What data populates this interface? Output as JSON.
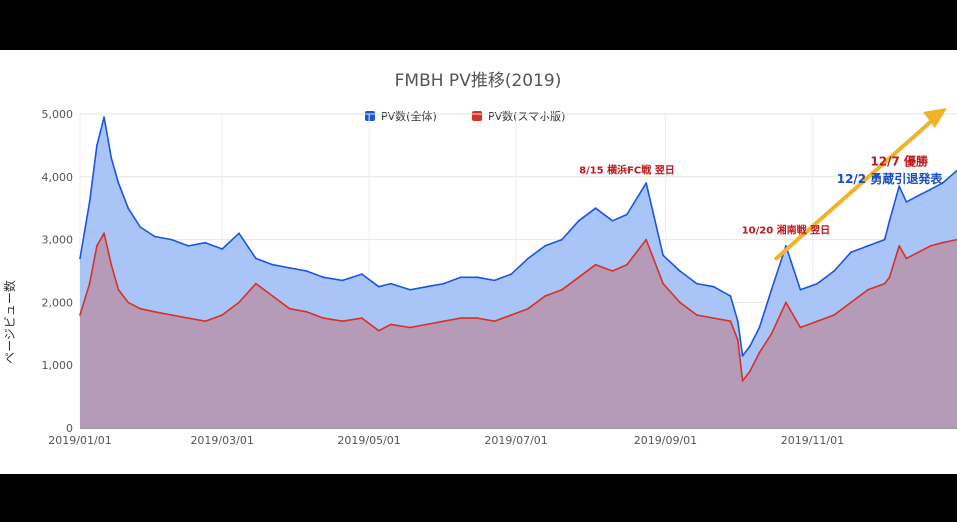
{
  "colors": {
    "total": "#1a55e3",
    "total_fill": "#a9c5f7",
    "mobile": "#d93025",
    "mobile_fill": "#b59bb8",
    "arrow": "#f2b32a",
    "annot_red": "#c0161d",
    "annot_blue": "#1a4fc4"
  },
  "chart_data": {
    "type": "area",
    "title": "FMBH PV推移(2019)",
    "ylabel": "ページビュー数",
    "xlabel": "",
    "ylim": [
      0,
      5000
    ],
    "yticks": [
      "0",
      "1,000",
      "2,000",
      "3,000",
      "4,000",
      "5,000"
    ],
    "ytick_values": [
      0,
      1000,
      2000,
      3000,
      4000,
      5000
    ],
    "xlim": [
      "2019-01-01",
      "2019-12-31"
    ],
    "xticks": [
      "2019/01/01",
      "2019/03/01",
      "2019/05/01",
      "2019/07/01",
      "2019/09/01",
      "2019/11/01"
    ],
    "xtick_dates": [
      "2019-01-01",
      "2019-03-01",
      "2019-05-01",
      "2019-07-01",
      "2019-09-01",
      "2019-11-01"
    ],
    "grid": true,
    "legend_position": "top",
    "series": [
      {
        "name": "PV数(全体)",
        "key": "total",
        "x": [
          "2019-01-01",
          "2019-01-05",
          "2019-01-08",
          "2019-01-11",
          "2019-01-14",
          "2019-01-17",
          "2019-01-21",
          "2019-01-26",
          "2019-02-01",
          "2019-02-08",
          "2019-02-15",
          "2019-02-22",
          "2019-03-01",
          "2019-03-08",
          "2019-03-15",
          "2019-03-22",
          "2019-03-29",
          "2019-04-05",
          "2019-04-12",
          "2019-04-20",
          "2019-04-28",
          "2019-05-05",
          "2019-05-10",
          "2019-05-18",
          "2019-05-25",
          "2019-06-01",
          "2019-06-08",
          "2019-06-15",
          "2019-06-22",
          "2019-06-29",
          "2019-07-06",
          "2019-07-13",
          "2019-07-20",
          "2019-07-27",
          "2019-08-03",
          "2019-08-10",
          "2019-08-16",
          "2019-08-24",
          "2019-08-31",
          "2019-09-07",
          "2019-09-14",
          "2019-09-21",
          "2019-09-28",
          "2019-10-01",
          "2019-10-03",
          "2019-10-06",
          "2019-10-10",
          "2019-10-15",
          "2019-10-21",
          "2019-10-27",
          "2019-11-03",
          "2019-11-10",
          "2019-11-17",
          "2019-11-24",
          "2019-12-01",
          "2019-12-03",
          "2019-12-07",
          "2019-12-10",
          "2019-12-15",
          "2019-12-20",
          "2019-12-25",
          "2019-12-31"
        ],
        "y": [
          2700,
          3600,
          4500,
          4950,
          4300,
          3900,
          3500,
          3200,
          3050,
          3000,
          2900,
          2950,
          2850,
          3100,
          2700,
          2600,
          2550,
          2500,
          2400,
          2350,
          2450,
          2250,
          2300,
          2200,
          2250,
          2300,
          2400,
          2400,
          2350,
          2450,
          2700,
          2900,
          3000,
          3300,
          3500,
          3300,
          3400,
          3900,
          2750,
          2500,
          2300,
          2250,
          2100,
          1700,
          1150,
          1300,
          1600,
          2200,
          2900,
          2200,
          2300,
          2500,
          2800,
          2900,
          3000,
          3300,
          3850,
          3600,
          3700,
          3800,
          3900,
          4100
        ]
      },
      {
        "name": "PV数(スマホ版)",
        "key": "mobile",
        "x": [
          "2019-01-01",
          "2019-01-05",
          "2019-01-08",
          "2019-01-11",
          "2019-01-14",
          "2019-01-17",
          "2019-01-21",
          "2019-01-26",
          "2019-02-01",
          "2019-02-08",
          "2019-02-15",
          "2019-02-22",
          "2019-03-01",
          "2019-03-08",
          "2019-03-15",
          "2019-03-22",
          "2019-03-29",
          "2019-04-05",
          "2019-04-12",
          "2019-04-20",
          "2019-04-28",
          "2019-05-05",
          "2019-05-10",
          "2019-05-18",
          "2019-05-25",
          "2019-06-01",
          "2019-06-08",
          "2019-06-15",
          "2019-06-22",
          "2019-06-29",
          "2019-07-06",
          "2019-07-13",
          "2019-07-20",
          "2019-07-27",
          "2019-08-03",
          "2019-08-10",
          "2019-08-16",
          "2019-08-24",
          "2019-08-31",
          "2019-09-07",
          "2019-09-14",
          "2019-09-21",
          "2019-09-28",
          "2019-10-01",
          "2019-10-03",
          "2019-10-06",
          "2019-10-10",
          "2019-10-15",
          "2019-10-21",
          "2019-10-27",
          "2019-11-03",
          "2019-11-10",
          "2019-11-17",
          "2019-11-24",
          "2019-12-01",
          "2019-12-03",
          "2019-12-07",
          "2019-12-10",
          "2019-12-15",
          "2019-12-20",
          "2019-12-25",
          "2019-12-31"
        ],
        "y": [
          1800,
          2300,
          2900,
          3100,
          2600,
          2200,
          2000,
          1900,
          1850,
          1800,
          1750,
          1700,
          1800,
          2000,
          2300,
          2100,
          1900,
          1850,
          1750,
          1700,
          1750,
          1550,
          1650,
          1600,
          1650,
          1700,
          1750,
          1750,
          1700,
          1800,
          1900,
          2100,
          2200,
          2400,
          2600,
          2500,
          2600,
          3000,
          2300,
          2000,
          1800,
          1750,
          1700,
          1400,
          750,
          900,
          1200,
          1500,
          2000,
          1600,
          1700,
          1800,
          2000,
          2200,
          2300,
          2400,
          2900,
          2700,
          2800,
          2900,
          2950,
          3000
        ]
      }
    ],
    "annotations": [
      {
        "text": "8/15 横浜FC戦 翌日",
        "date": "2019-08-16",
        "value": 4050,
        "color_key": "annot_red",
        "size": "small"
      },
      {
        "text": "10/20 湘南戦 翌日",
        "date": "2019-10-21",
        "value": 3100,
        "color_key": "annot_red",
        "size": "small"
      },
      {
        "text": "12/2 勇蔵引退発表",
        "date": "2019-12-03",
        "value": 3900,
        "color_key": "annot_blue",
        "size": "big"
      },
      {
        "text": "12/7 優勝",
        "date": "2019-12-07",
        "value": 4180,
        "color_key": "annot_red",
        "size": "big"
      }
    ],
    "trend_arrow": {
      "from": {
        "date": "2019-10-17",
        "value": 2700
      },
      "to": {
        "date": "2019-12-31",
        "value": 5000
      }
    }
  }
}
